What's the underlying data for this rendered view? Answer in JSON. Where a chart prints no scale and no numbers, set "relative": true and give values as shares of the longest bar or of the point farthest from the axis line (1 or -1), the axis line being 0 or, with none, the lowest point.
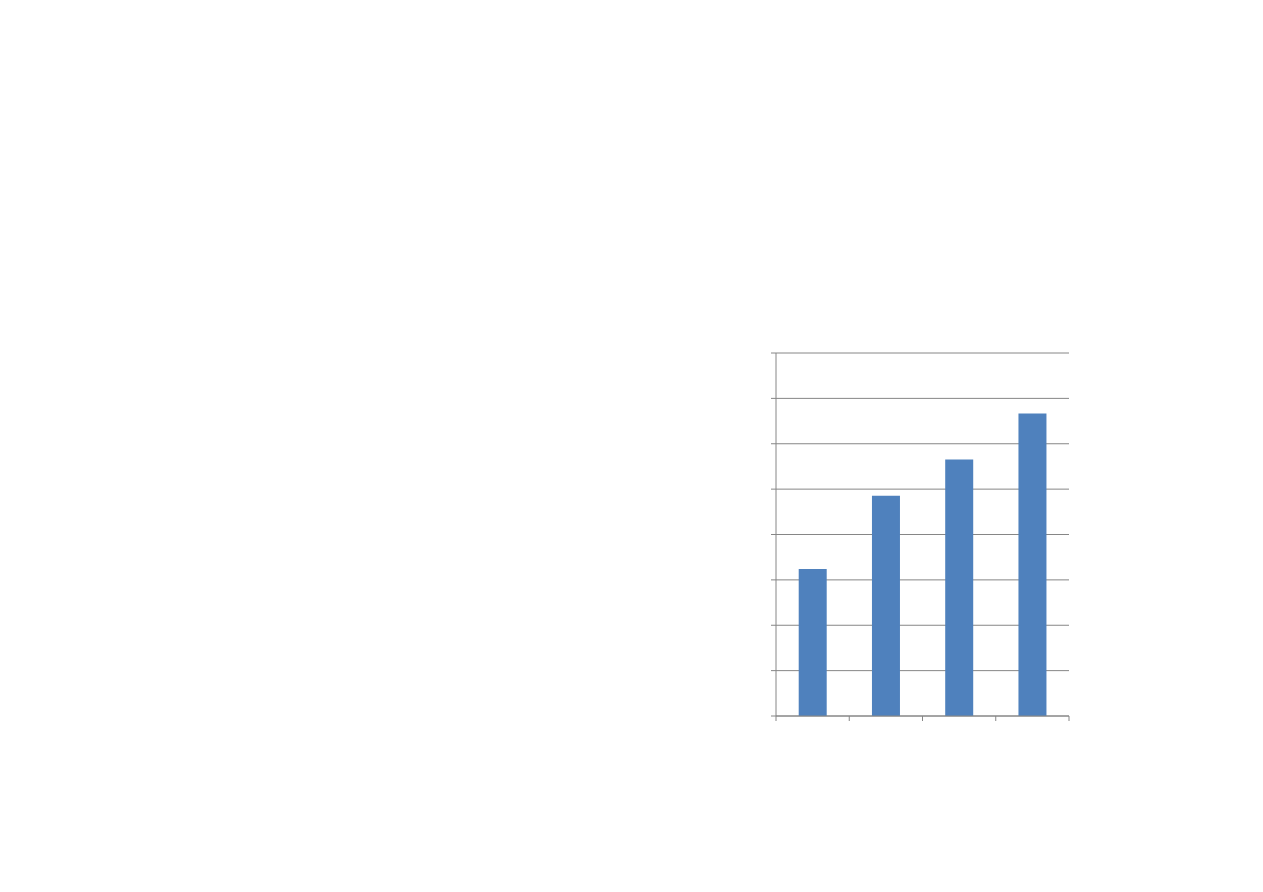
{
  "chart_data": {
    "type": "bar",
    "categories": [
      null,
      null,
      null,
      null
    ],
    "values": [
      0.486,
      0.728,
      0.848,
      1
    ],
    "color": "#4f81bd",
    "relative": true,
    "grid": "y"
  }
}
